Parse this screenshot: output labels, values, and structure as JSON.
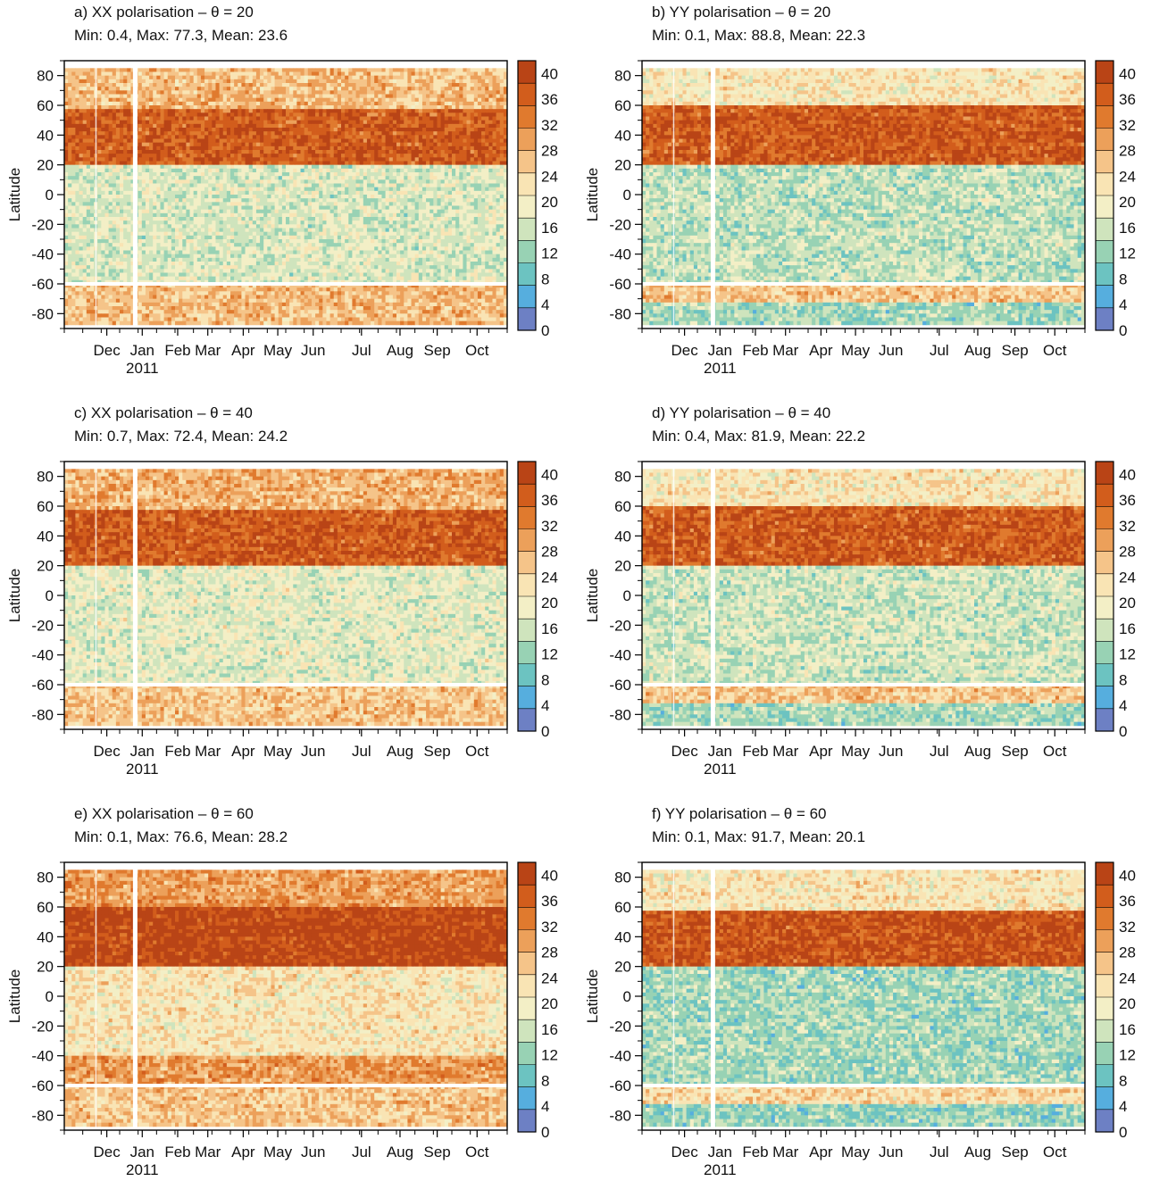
{
  "figure": {
    "y_axis_label": "Latitude",
    "year_label": "2011",
    "month_labels": [
      "Dec",
      "Jan",
      "Feb",
      "Mar",
      "Apr",
      "May",
      "Jun",
      "Jul",
      "Aug",
      "Sep",
      "Oct"
    ],
    "y_ticks": [
      80,
      60,
      40,
      20,
      0,
      -20,
      -40,
      -60,
      -80
    ],
    "colorbar_ticks": [
      40,
      36,
      32,
      28,
      24,
      20,
      16,
      12,
      8,
      4,
      0
    ],
    "colorbar_colors": [
      "#b94416",
      "#d25d1c",
      "#e07a2e",
      "#eca05a",
      "#f5c489",
      "#f9e4b4",
      "#f3efc6",
      "#cfe4bd",
      "#98d2b4",
      "#6cc3c1",
      "#56aede",
      "#6d80c4"
    ]
  },
  "chart_data": [
    {
      "type": "heatmap",
      "panel": "a",
      "title": "a) XX polarisation – θ = 20",
      "stats": "Min: 0.4, Max: 77.3, Mean: 23.6",
      "ylabel": "Latitude",
      "xlabel": "",
      "x_categories": [
        "Dec",
        "Jan",
        "Feb",
        "Mar",
        "Apr",
        "May",
        "Jun",
        "Jul",
        "Aug",
        "Sep",
        "Oct"
      ],
      "y_ticks": [
        80,
        60,
        40,
        20,
        0,
        -20,
        -40,
        -60,
        -80
      ],
      "ylim": [
        -90,
        90
      ],
      "colorbar": {
        "ticks": [
          0,
          4,
          8,
          12,
          16,
          20,
          24,
          28,
          32,
          36,
          40
        ],
        "range": [
          0,
          42
        ]
      },
      "latitude_band_profile": [
        {
          "lat_range": [
            60,
            85
          ],
          "value": 27
        },
        {
          "lat_range": [
            22,
            55
          ],
          "value": 37
        },
        {
          "lat_range": [
            -58,
            20
          ],
          "value": 17
        },
        {
          "lat_range": [
            -88,
            -62
          ],
          "value": 27
        }
      ]
    },
    {
      "type": "heatmap",
      "panel": "b",
      "title": "b) YY polarisation – θ = 20",
      "stats": "Min: 0.1, Max: 88.8, Mean: 22.3",
      "ylabel": "Latitude",
      "xlabel": "",
      "x_categories": [
        "Dec",
        "Jan",
        "Feb",
        "Mar",
        "Apr",
        "May",
        "Jun",
        "Jul",
        "Aug",
        "Sep",
        "Oct"
      ],
      "y_ticks": [
        80,
        60,
        40,
        20,
        0,
        -20,
        -40,
        -60,
        -80
      ],
      "ylim": [
        -90,
        90
      ],
      "colorbar": {
        "ticks": [
          0,
          4,
          8,
          12,
          16,
          20,
          24,
          28,
          32,
          36,
          40
        ],
        "range": [
          0,
          42
        ]
      },
      "latitude_band_profile": [
        {
          "lat_range": [
            60,
            85
          ],
          "value": 22
        },
        {
          "lat_range": [
            22,
            58
          ],
          "value": 37
        },
        {
          "lat_range": [
            -58,
            20
          ],
          "value": 15
        },
        {
          "lat_range": [
            -72,
            -62
          ],
          "value": 26
        },
        {
          "lat_range": [
            -88,
            -74
          ],
          "value": 13
        }
      ]
    },
    {
      "type": "heatmap",
      "panel": "c",
      "title": "c) XX polarisation – θ = 40",
      "stats": "Min: 0.7, Max: 72.4, Mean: 24.2",
      "ylabel": "Latitude",
      "xlabel": "",
      "x_categories": [
        "Dec",
        "Jan",
        "Feb",
        "Mar",
        "Apr",
        "May",
        "Jun",
        "Jul",
        "Aug",
        "Sep",
        "Oct"
      ],
      "y_ticks": [
        80,
        60,
        40,
        20,
        0,
        -20,
        -40,
        -60,
        -80
      ],
      "ylim": [
        -90,
        90
      ],
      "colorbar": {
        "ticks": [
          0,
          4,
          8,
          12,
          16,
          20,
          24,
          28,
          32,
          36,
          40
        ],
        "range": [
          0,
          42
        ]
      },
      "latitude_band_profile": [
        {
          "lat_range": [
            60,
            85
          ],
          "value": 28
        },
        {
          "lat_range": [
            22,
            55
          ],
          "value": 37
        },
        {
          "lat_range": [
            -58,
            20
          ],
          "value": 18
        },
        {
          "lat_range": [
            -88,
            -62
          ],
          "value": 26
        }
      ]
    },
    {
      "type": "heatmap",
      "panel": "d",
      "title": "d) YY polarisation – θ = 40",
      "stats": "Min: 0.4, Max: 81.9, Mean: 22.2",
      "ylabel": "Latitude",
      "xlabel": "",
      "x_categories": [
        "Dec",
        "Jan",
        "Feb",
        "Mar",
        "Apr",
        "May",
        "Jun",
        "Jul",
        "Aug",
        "Sep",
        "Oct"
      ],
      "y_ticks": [
        80,
        60,
        40,
        20,
        0,
        -20,
        -40,
        -60,
        -80
      ],
      "ylim": [
        -90,
        90
      ],
      "colorbar": {
        "ticks": [
          0,
          4,
          8,
          12,
          16,
          20,
          24,
          28,
          32,
          36,
          40
        ],
        "range": [
          0,
          42
        ]
      },
      "latitude_band_profile": [
        {
          "lat_range": [
            60,
            85
          ],
          "value": 22
        },
        {
          "lat_range": [
            22,
            58
          ],
          "value": 37
        },
        {
          "lat_range": [
            -58,
            20
          ],
          "value": 16
        },
        {
          "lat_range": [
            -72,
            -62
          ],
          "value": 26
        },
        {
          "lat_range": [
            -88,
            -74
          ],
          "value": 13
        }
      ]
    },
    {
      "type": "heatmap",
      "panel": "e",
      "title": "e) XX polarisation – θ = 60",
      "stats": "Min: 0.1, Max: 76.6, Mean: 28.2",
      "ylabel": "Latitude",
      "xlabel": "",
      "x_categories": [
        "Dec",
        "Jan",
        "Feb",
        "Mar",
        "Apr",
        "May",
        "Jun",
        "Jul",
        "Aug",
        "Sep",
        "Oct"
      ],
      "y_ticks": [
        80,
        60,
        40,
        20,
        0,
        -20,
        -40,
        -60,
        -80
      ],
      "ylim": [
        -90,
        90
      ],
      "colorbar": {
        "ticks": [
          0,
          4,
          8,
          12,
          16,
          20,
          24,
          28,
          32,
          36,
          40
        ],
        "range": [
          0,
          42
        ]
      },
      "latitude_band_profile": [
        {
          "lat_range": [
            60,
            85
          ],
          "value": 30
        },
        {
          "lat_range": [
            20,
            58
          ],
          "value": 40
        },
        {
          "lat_range": [
            -40,
            18
          ],
          "value": 22
        },
        {
          "lat_range": [
            -58,
            -40
          ],
          "value": 30
        },
        {
          "lat_range": [
            -88,
            -62
          ],
          "value": 26
        }
      ]
    },
    {
      "type": "heatmap",
      "panel": "f",
      "title": "f) YY polarisation – θ = 60",
      "stats": "Min: 0.1, Max: 91.7, Mean: 20.1",
      "ylabel": "Latitude",
      "xlabel": "",
      "x_categories": [
        "Dec",
        "Jan",
        "Feb",
        "Mar",
        "Apr",
        "May",
        "Jun",
        "Jul",
        "Aug",
        "Sep",
        "Oct"
      ],
      "y_ticks": [
        80,
        60,
        40,
        20,
        0,
        -20,
        -40,
        -60,
        -80
      ],
      "ylim": [
        -90,
        90
      ],
      "colorbar": {
        "ticks": [
          0,
          4,
          8,
          12,
          16,
          20,
          24,
          28,
          32,
          36,
          40
        ],
        "range": [
          0,
          42
        ]
      },
      "latitude_band_profile": [
        {
          "lat_range": [
            60,
            85
          ],
          "value": 22
        },
        {
          "lat_range": [
            22,
            56
          ],
          "value": 38
        },
        {
          "lat_range": [
            -58,
            20
          ],
          "value": 13
        },
        {
          "lat_range": [
            -72,
            -62
          ],
          "value": 24
        },
        {
          "lat_range": [
            -88,
            -74
          ],
          "value": 12
        }
      ]
    }
  ]
}
